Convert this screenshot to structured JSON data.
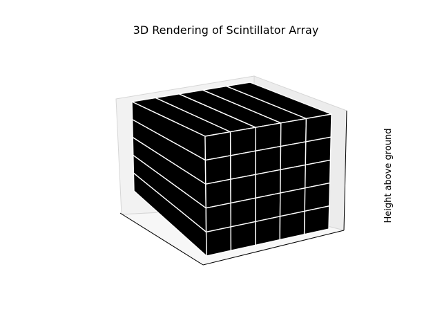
{
  "chart_data": {
    "type": "3d-voxels",
    "title": "3D Rendering of Scintillator Array",
    "xlabel": "",
    "ylabel": "",
    "zlabel": "Height above ground",
    "array": {
      "columns": 5,
      "rows": 5
    },
    "grid": false,
    "colors": {
      "voxel_face": "#000000",
      "voxel_edge": "#ffffff",
      "pane": "#f2f2f2",
      "pane_edge": "#d6d6d6",
      "axis_line": "#000000"
    }
  }
}
